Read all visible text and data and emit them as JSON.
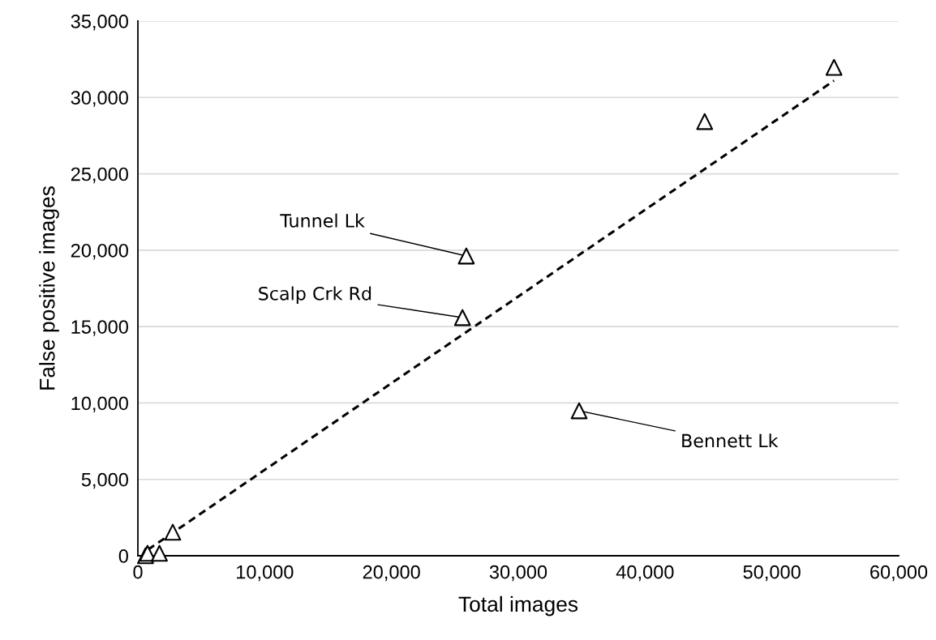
{
  "chart_data": {
    "type": "scatter",
    "xlabel": "Total images",
    "ylabel": "False positive images",
    "xlim": [
      0,
      60000
    ],
    "ylim": [
      0,
      35000
    ],
    "xticks": [
      0,
      {
        "value": 10000,
        "label": "10,000"
      },
      {
        "value": 20000,
        "label": "20,000"
      },
      {
        "value": 30000,
        "label": "30,000"
      },
      {
        "value": 40000,
        "label": "40,000"
      },
      {
        "value": 50000,
        "label": "50,000"
      },
      {
        "value": 60000,
        "label": "60,000"
      }
    ],
    "yticks": [
      0,
      {
        "value": 5000,
        "label": "5,000"
      },
      {
        "value": 10000,
        "label": "10,000"
      },
      {
        "value": 15000,
        "label": "15,000"
      },
      {
        "value": 20000,
        "label": "20,000"
      },
      {
        "value": 25000,
        "label": "25,000"
      },
      {
        "value": 30000,
        "label": "30,000"
      },
      {
        "value": 35000,
        "label": "35,000"
      }
    ],
    "grid": "y",
    "series": [
      {
        "color": "#000000",
        "marker": "triangle",
        "x": [
          600,
          760,
          1700,
          2750,
          25600,
          25900,
          34800,
          44700,
          54900
        ],
        "values": [
          0,
          160,
          160,
          1540,
          15590,
          19620,
          9490,
          28420,
          31970
        ]
      },
      {
        "type": "line",
        "color": "#000000",
        "line_style": "dashed",
        "marker": "none",
        "x": [
          800,
          54900
        ],
        "values": [
          400,
          31100
        ]
      }
    ],
    "annotations": [
      {
        "text": "Tunnel Lk",
        "x": 25900,
        "y": 19620
      },
      {
        "text": "Scalp Crk Rd",
        "x": 25600,
        "y": 15590
      },
      {
        "text": "Bennett Lk",
        "x": 34800,
        "y": 9490
      }
    ]
  }
}
